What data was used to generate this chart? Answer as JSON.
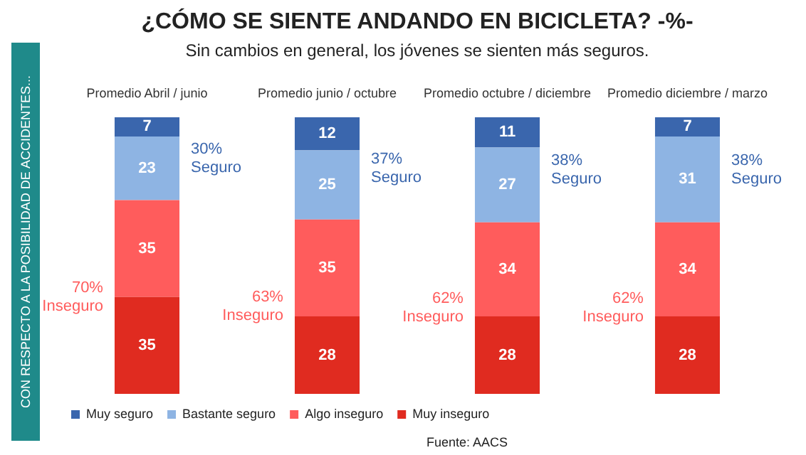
{
  "chart_data": {
    "type": "bar",
    "stacked": true,
    "title": "¿CÓMO SE SIENTE ANDANDO EN BICICLETA? -%-",
    "subtitle": "Sin cambios en general, los jóvenes se sienten más seguros.",
    "categories": [
      "Promedio Abril / junio",
      "Promedio junio / octubre",
      "Promedio octubre / diciembre",
      "Promedio diciembre / marzo"
    ],
    "series": [
      {
        "name": "Muy inseguro",
        "color": "#e02b20",
        "values": [
          35,
          28,
          28,
          28
        ]
      },
      {
        "name": "Algo inseguro",
        "color": "#ff5c5c",
        "values": [
          35,
          35,
          34,
          34
        ]
      },
      {
        "name": "Bastante seguro",
        "color": "#8eb4e3",
        "values": [
          23,
          25,
          27,
          31
        ]
      },
      {
        "name": "Muy seguro",
        "color": "#3a66ad",
        "values": [
          7,
          12,
          11,
          7
        ]
      }
    ],
    "tick_labels": "x",
    "data_labels": true,
    "legend": "bottom",
    "grid": false,
    "annotations": [
      "70% Inseguro",
      "30% Seguro",
      "63% Inseguro",
      "37% Seguro",
      "62% Inseguro",
      "38% Seguro",
      "62% Inseguro",
      "38% Seguro",
      "CON RESPECTO A LA POSIBILIDAD DE ACCIDENTES...",
      "Fuente: AACS"
    ]
  }
}
